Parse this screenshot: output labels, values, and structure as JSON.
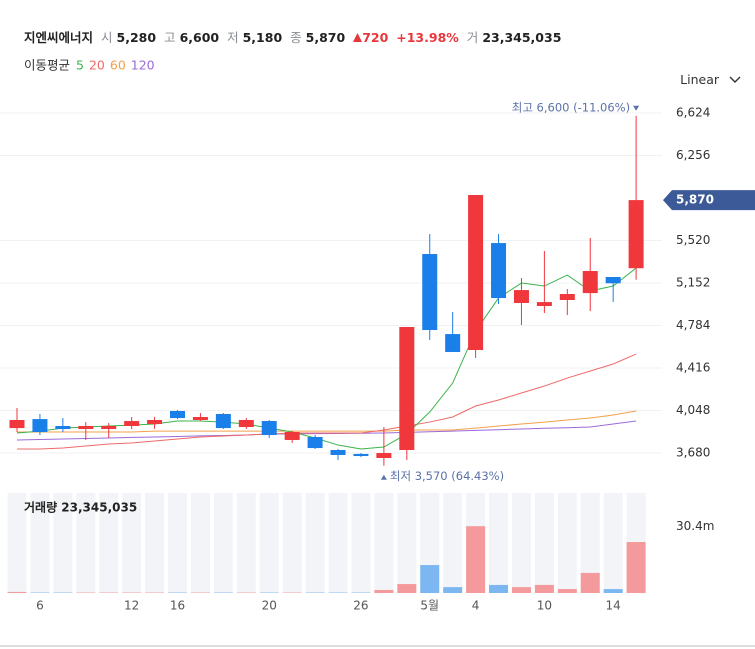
{
  "header": {
    "name": "지엔씨에너지",
    "open_label": "시",
    "open": "5,280",
    "high_label": "고",
    "high": "6,600",
    "low_label": "저",
    "low": "5,180",
    "close_label": "종",
    "close": "5,870",
    "change": "720",
    "change_pct": "+13.98%",
    "volume_label": "거",
    "volume": "23,345,035",
    "scale": "Linear"
  },
  "chart_data": [
    {
      "type": "candlestick",
      "legend_title": "이동평균",
      "open": [
        3896,
        3974,
        3914,
        3888,
        3888,
        3914,
        3931,
        4044,
        3966,
        4018,
        3905,
        3957,
        3793,
        3819,
        3706,
        3672,
        3637,
        3706,
        5403,
        4710,
        4572,
        5498,
        4979,
        4953,
        5005,
        5065,
        5204,
        5280
      ],
      "high": [
        4070,
        4018,
        3983,
        3948,
        3940,
        3992,
        3992,
        4052,
        4026,
        4026,
        3983,
        3966,
        3870,
        3836,
        3715,
        3680,
        3905,
        4771,
        5576,
        4901,
        5914,
        5576,
        5195,
        5429,
        5100,
        5542,
        5204,
        6600
      ],
      "low": [
        3862,
        3836,
        3862,
        3793,
        3810,
        3888,
        3888,
        3974,
        3957,
        3888,
        3888,
        3810,
        3767,
        3715,
        3620,
        3646,
        3570,
        3620,
        4658,
        4555,
        4503,
        4970,
        4788,
        4892,
        4875,
        4909,
        4988,
        5180
      ],
      "close": [
        3966,
        3862,
        3888,
        3914,
        3914,
        3957,
        3966,
        3983,
        3992,
        3896,
        3966,
        3836,
        3862,
        3723,
        3663,
        3654,
        3680,
        4771,
        4745,
        4555,
        5914,
        5022,
        5091,
        4987,
        5057,
        5256,
        5150,
        5870
      ],
      "up_color": "#f0373c",
      "down_color": "#1a7fe8",
      "series": [
        {
          "name": "5",
          "color": "#3cb34a",
          "values": [
            3853,
            3870,
            3896,
            3905,
            3914,
            3922,
            3931,
            3957,
            3957,
            3948,
            3931,
            3896,
            3862,
            3810,
            3749,
            3715,
            3732,
            3845,
            4035,
            4286,
            4736,
            5022,
            5152,
            5126,
            5221,
            5083,
            5126,
            5282
          ]
        },
        {
          "name": "20",
          "color": "#ef6a68",
          "values": [
            3715,
            3715,
            3723,
            3741,
            3758,
            3767,
            3784,
            3801,
            3819,
            3827,
            3836,
            3845,
            3853,
            3853,
            3853,
            3853,
            3879,
            3914,
            3948,
            3992,
            4087,
            4139,
            4200,
            4260,
            4329,
            4390,
            4451,
            4537
          ]
        },
        {
          "name": "60",
          "color": "#f2a04a",
          "values": [
            3862,
            3862,
            3862,
            3862,
            3862,
            3862,
            3870,
            3870,
            3870,
            3870,
            3870,
            3870,
            3870,
            3870,
            3870,
            3870,
            3870,
            3879,
            3879,
            3879,
            3896,
            3914,
            3931,
            3948,
            3966,
            3983,
            4009,
            4044
          ]
        },
        {
          "name": "120",
          "color": "#9b6ad8",
          "values": [
            3793,
            3797,
            3801,
            3806,
            3810,
            3815,
            3819,
            3823,
            3828,
            3832,
            3836,
            3845,
            3846,
            3848,
            3849,
            3851,
            3853,
            3859,
            3864,
            3870,
            3876,
            3882,
            3888,
            3894,
            3899,
            3905,
            3931,
            3957
          ]
        }
      ],
      "ylim": [
        3533,
        6780
      ],
      "yticks": [
        {
          "value": 3680,
          "label": "3,680"
        },
        {
          "value": 4048,
          "label": "4,048"
        },
        {
          "value": 4416,
          "label": "4,416"
        },
        {
          "value": 4784,
          "label": "4,784"
        },
        {
          "value": 5152,
          "label": "5,152"
        },
        {
          "value": 5520,
          "label": "5,520"
        },
        {
          "value": 6256,
          "label": "6,256"
        },
        {
          "value": 6624,
          "label": "6,624"
        }
      ],
      "grid": true,
      "annotations": [
        {
          "text": "최고 6,600 (-11.06%)"
        },
        {
          "text": "최저 3,570 (64.43%)"
        }
      ]
    },
    {
      "type": "bar",
      "title": "거래량 23,345,035",
      "categories": [
        null,
        "6",
        null,
        null,
        null,
        "12",
        null,
        "16",
        null,
        null,
        null,
        "20",
        null,
        null,
        null,
        "26",
        null,
        null,
        "5월",
        null,
        "4",
        null,
        null,
        "10",
        null,
        null,
        "14",
        null
      ],
      "values": [
        500000,
        200000,
        200000,
        200000,
        200000,
        200000,
        200000,
        200000,
        200000,
        200000,
        200000,
        200000,
        200000,
        200000,
        200000,
        200000,
        1400000,
        4100000,
        12800000,
        2700000,
        30600000,
        3700000,
        2700000,
        3700000,
        1800000,
        9200000,
        1800000,
        23345035
      ],
      "up_color": "#f49a9c",
      "down_color": "#7db7f2",
      "ylim": [
        0,
        45800000
      ],
      "yticks": [
        {
          "value": 30400000,
          "label": "30.4m"
        }
      ]
    }
  ]
}
